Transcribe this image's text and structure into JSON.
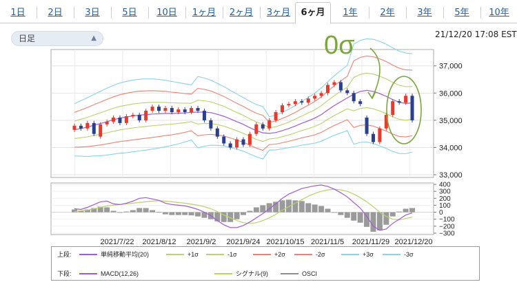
{
  "tabs": [
    {
      "label": "1日",
      "active": false
    },
    {
      "label": "2日",
      "active": false
    },
    {
      "label": "3日",
      "active": false
    },
    {
      "label": "5日",
      "active": false
    },
    {
      "label": "10日",
      "active": false
    },
    {
      "label": "1ヶ月",
      "active": false
    },
    {
      "label": "2ヶ月",
      "active": false
    },
    {
      "label": "3ヶ月",
      "active": false
    },
    {
      "label": "6ヶ月",
      "active": true
    },
    {
      "label": "1年",
      "active": false
    },
    {
      "label": "2年",
      "active": false
    },
    {
      "label": "3年",
      "active": false
    },
    {
      "label": "5年",
      "active": false
    },
    {
      "label": "10年",
      "active": false
    }
  ],
  "period_select": {
    "value": "日足"
  },
  "timestamp": "21/12/20 17:08 EST",
  "annotation": "0σ",
  "colors": {
    "accent_link": "#1f5fa8",
    "candle_up": "#e8392c",
    "candle_down": "#2a3f8f",
    "sma": "#a25ad6",
    "sigma1": "#b9d36a",
    "sigma2": "#f08070",
    "sigma3": "#86d3ea",
    "macd": "#a25ad6",
    "signal": "#b9d36a",
    "osci": "#9a9a9a",
    "annotation": "#7aa63a"
  },
  "chart_data": [
    {
      "type": "candlestick",
      "title": "",
      "y_ticks": [
        "37,000",
        "36,000",
        "35,000",
        "34,000",
        "33,000"
      ],
      "ylim": [
        32900,
        37600
      ],
      "x_ticks": [
        "2021/7/22",
        "2021/8/12",
        "2021/9/2",
        "2021/9/24",
        "2021/10/15",
        "2021/11/5",
        "2021/11/29",
        "2021/12/20"
      ],
      "sma_values": [
        34650,
        34700,
        34750,
        34820,
        34880,
        34950,
        35020,
        35080,
        35120,
        35160,
        35190,
        35210,
        35230,
        35240,
        35250,
        35250,
        35260,
        35270,
        35290,
        35300,
        35300,
        35280,
        35220,
        35150,
        35050,
        34950,
        34850,
        34730,
        34620,
        34540,
        34520,
        34550,
        34620,
        34700,
        34790,
        34890,
        34980,
        35080,
        35210,
        35380,
        35540,
        35680,
        35820,
        35960,
        36060,
        36100,
        36060,
        35980,
        35880,
        35760,
        35660,
        35620,
        35640
      ],
      "sigma_offsets_hint": "bands drawn from SMA; see legend",
      "candles": [
        {
          "o": 34650,
          "c": 34800
        },
        {
          "o": 34800,
          "c": 34700
        },
        {
          "o": 34700,
          "c": 34900
        },
        {
          "o": 34900,
          "c": 34500
        },
        {
          "o": 34400,
          "c": 34850
        },
        {
          "o": 34850,
          "c": 34950
        },
        {
          "o": 34950,
          "c": 35100
        },
        {
          "o": 35100,
          "c": 34900
        },
        {
          "o": 34900,
          "c": 35150
        },
        {
          "o": 35150,
          "c": 35200
        },
        {
          "o": 35200,
          "c": 35000
        },
        {
          "o": 35000,
          "c": 35350
        },
        {
          "o": 35350,
          "c": 35500
        },
        {
          "o": 35500,
          "c": 35350
        },
        {
          "o": 35350,
          "c": 35450
        },
        {
          "o": 35450,
          "c": 35300
        },
        {
          "o": 35300,
          "c": 35400
        },
        {
          "o": 35400,
          "c": 35300
        },
        {
          "o": 35300,
          "c": 35450
        },
        {
          "o": 35450,
          "c": 35350
        },
        {
          "o": 35350,
          "c": 35000
        },
        {
          "o": 35000,
          "c": 34700
        },
        {
          "o": 34700,
          "c": 34400
        },
        {
          "o": 34400,
          "c": 34150
        },
        {
          "o": 34150,
          "c": 34000
        },
        {
          "o": 34000,
          "c": 34300
        },
        {
          "o": 34300,
          "c": 34100
        },
        {
          "o": 34100,
          "c": 34500
        },
        {
          "o": 34500,
          "c": 34850
        },
        {
          "o": 34850,
          "c": 34700
        },
        {
          "o": 34700,
          "c": 35000
        },
        {
          "o": 35000,
          "c": 35300
        },
        {
          "o": 35300,
          "c": 35550
        },
        {
          "o": 35550,
          "c": 35600
        },
        {
          "o": 35600,
          "c": 35700
        },
        {
          "o": 35700,
          "c": 35650
        },
        {
          "o": 35650,
          "c": 35800
        },
        {
          "o": 35800,
          "c": 35900
        },
        {
          "o": 35900,
          "c": 36000
        },
        {
          "o": 36000,
          "c": 36300
        },
        {
          "o": 36300,
          "c": 36400
        },
        {
          "o": 36400,
          "c": 36100
        },
        {
          "o": 36100,
          "c": 36000
        },
        {
          "o": 36000,
          "c": 35700
        },
        {
          "o": 35700,
          "c": 35600
        },
        {
          "o": 35100,
          "c": 34500
        },
        {
          "o": 34500,
          "c": 34200
        },
        {
          "o": 34200,
          "c": 34700
        },
        {
          "o": 34700,
          "c": 35200
        },
        {
          "o": 35200,
          "c": 35700
        },
        {
          "o": 35700,
          "c": 35650
        },
        {
          "o": 35650,
          "c": 35900
        },
        {
          "o": 35900,
          "c": 35000
        }
      ]
    },
    {
      "type": "line",
      "title": "",
      "y_ticks": [
        "400",
        "300",
        "200",
        "100",
        "0",
        "−100",
        "−200",
        "−300"
      ],
      "ylim": [
        -320,
        420
      ],
      "series": [
        {
          "name": "MACD(12,26)",
          "values": [
            50,
            40,
            70,
            110,
            150,
            160,
            120,
            110,
            130,
            160,
            200,
            210,
            190,
            170,
            130,
            110,
            100,
            90,
            70,
            40,
            0,
            -50,
            -120,
            -180,
            -220,
            -220,
            -190,
            -140,
            -80,
            -20,
            50,
            120,
            200,
            260,
            300,
            340,
            360,
            380,
            390,
            370,
            330,
            280,
            220,
            140,
            60,
            -60,
            -200,
            -260,
            -240,
            -160,
            -100,
            -40,
            -10
          ]
        },
        {
          "name": "シグナル(9)",
          "values": [
            10,
            20,
            30,
            50,
            70,
            90,
            100,
            110,
            120,
            130,
            140,
            150,
            160,
            165,
            160,
            150,
            140,
            130,
            115,
            100,
            80,
            50,
            10,
            -40,
            -80,
            -120,
            -150,
            -160,
            -150,
            -120,
            -80,
            -30,
            30,
            80,
            130,
            180,
            230,
            270,
            300,
            320,
            330,
            320,
            300,
            260,
            210,
            150,
            80,
            0,
            -60,
            -100,
            -110,
            -90,
            -70
          ]
        },
        {
          "name": "OSCI",
          "values": [
            40,
            20,
            40,
            60,
            80,
            70,
            20,
            0,
            10,
            30,
            60,
            60,
            30,
            5,
            -30,
            -40,
            -40,
            -40,
            -45,
            -60,
            -80,
            -100,
            -130,
            -140,
            -140,
            -100,
            -40,
            20,
            70,
            100,
            130,
            150,
            170,
            180,
            170,
            160,
            130,
            110,
            90,
            50,
            0,
            -40,
            -80,
            -120,
            -150,
            -210,
            -280,
            -260,
            -180,
            -60,
            10,
            50,
            60
          ]
        }
      ]
    }
  ],
  "legend": {
    "upper_label": "上段:",
    "lower_label": "下段:",
    "upper_items": [
      {
        "label": "単純移動平均(20)",
        "color": "#a25ad6"
      },
      {
        "label": "+1σ",
        "color": "#b9d36a"
      },
      {
        "label": "-1σ",
        "color": "#b9d36a"
      },
      {
        "label": "+2σ",
        "color": "#f08070"
      },
      {
        "label": "-2σ",
        "color": "#f08070"
      },
      {
        "label": "+3σ",
        "color": "#86d3ea"
      },
      {
        "label": "-3σ",
        "color": "#86d3ea"
      }
    ],
    "lower_items": [
      {
        "label": "MACD(12,26)",
        "color": "#a25ad6"
      },
      {
        "label": "シグナル(9)",
        "color": "#b9d36a"
      },
      {
        "label": "OSCI",
        "color": "#8c8c8c"
      }
    ]
  }
}
